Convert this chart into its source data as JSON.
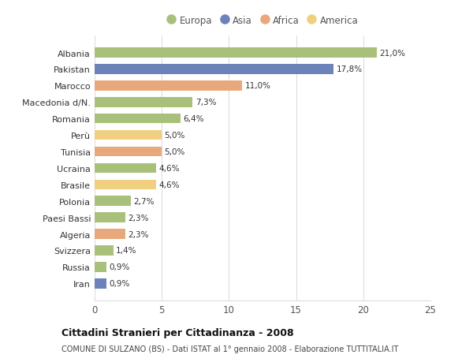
{
  "categories": [
    "Albania",
    "Pakistan",
    "Marocco",
    "Macedonia d/N.",
    "Romania",
    "Perù",
    "Tunisia",
    "Ucraina",
    "Brasile",
    "Polonia",
    "Paesi Bassi",
    "Algeria",
    "Svizzera",
    "Russia",
    "Iran"
  ],
  "values": [
    21.0,
    17.8,
    11.0,
    7.3,
    6.4,
    5.0,
    5.0,
    4.6,
    4.6,
    2.7,
    2.3,
    2.3,
    1.4,
    0.9,
    0.9
  ],
  "labels": [
    "21,0%",
    "17,8%",
    "11,0%",
    "7,3%",
    "6,4%",
    "5,0%",
    "5,0%",
    "4,6%",
    "4,6%",
    "2,7%",
    "2,3%",
    "2,3%",
    "1,4%",
    "0,9%",
    "0,9%"
  ],
  "colors": [
    "#a8c07a",
    "#6b83b8",
    "#e8a87c",
    "#a8c07a",
    "#a8c07a",
    "#f0d080",
    "#e8a87c",
    "#a8c07a",
    "#f0d080",
    "#a8c07a",
    "#a8c07a",
    "#e8a87c",
    "#a8c07a",
    "#a8c07a",
    "#6b83b8"
  ],
  "legend": [
    {
      "label": "Europa",
      "color": "#a8c07a"
    },
    {
      "label": "Asia",
      "color": "#6b83b8"
    },
    {
      "label": "Africa",
      "color": "#e8a87c"
    },
    {
      "label": "America",
      "color": "#f0d080"
    }
  ],
  "title": "Cittadini Stranieri per Cittadinanza - 2008",
  "subtitle": "COMUNE DI SULZANO (BS) - Dati ISTAT al 1° gennaio 2008 - Elaborazione TUTTITALIA.IT",
  "xlim": [
    0,
    25
  ],
  "xticks": [
    0,
    5,
    10,
    15,
    20,
    25
  ],
  "bg_color": "#ffffff",
  "grid_color": "#dddddd",
  "bar_height": 0.6
}
